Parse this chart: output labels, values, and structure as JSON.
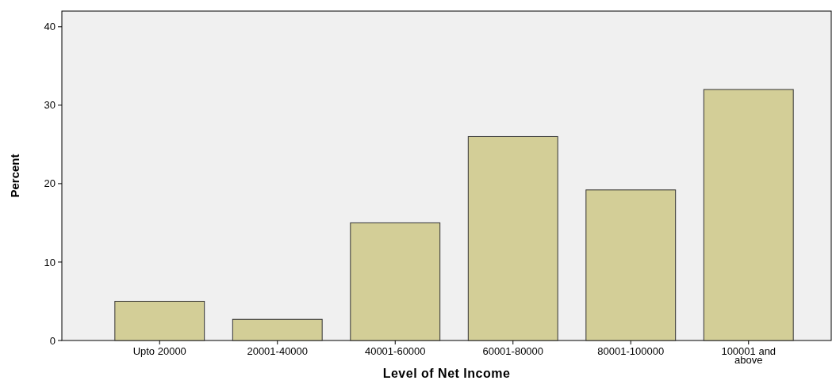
{
  "chart_data": {
    "type": "bar",
    "xlabel": "Level of Net Income",
    "ylabel": "Percent",
    "categories": [
      "Upto 20000",
      "20001-40000",
      "40001-60000",
      "60001-80000",
      "80001-100000",
      "100001 and above"
    ],
    "values": [
      5,
      2.7,
      15,
      26,
      19.2,
      32
    ],
    "color": "#d3ce97",
    "ylim": [
      0,
      42
    ],
    "yticks": [
      0,
      10,
      20,
      30,
      40
    ],
    "grid": false
  }
}
